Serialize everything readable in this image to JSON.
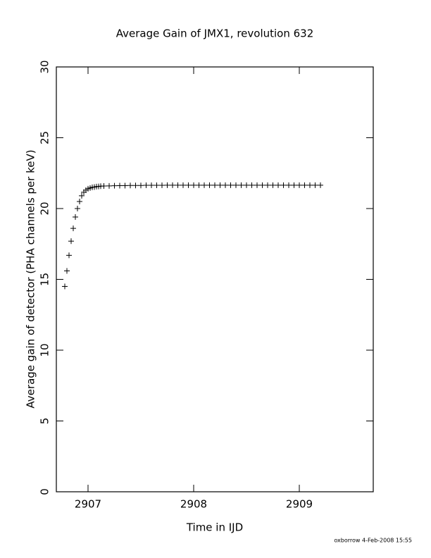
{
  "chart_data": {
    "type": "scatter",
    "title": "Average Gain of JMX1, revolution 632",
    "xlabel": "Time in IJD",
    "ylabel": "Average gain of detector (PHA channels per keV)",
    "footer": "oxborrow  4-Feb-2008 15:55",
    "marker": "+",
    "color": "#000000",
    "xlim": [
      2906.7,
      2909.7
    ],
    "xticks": [
      2907,
      2908,
      2909
    ],
    "ylim": [
      0,
      30
    ],
    "yticks": [
      0,
      5,
      10,
      15,
      20,
      25,
      30
    ],
    "x": [
      2906.78,
      2906.8,
      2906.82,
      2906.84,
      2906.86,
      2906.88,
      2906.9,
      2906.92,
      2906.94,
      2906.96,
      2906.98,
      2907.0,
      2907.02,
      2907.04,
      2907.06,
      2907.08,
      2907.1,
      2907.12,
      2907.15,
      2907.2,
      2907.25,
      2907.3,
      2907.35,
      2907.4,
      2907.45,
      2907.5,
      2907.55,
      2907.6,
      2907.65,
      2907.7,
      2907.75,
      2907.8,
      2907.85,
      2907.9,
      2907.95,
      2908.0,
      2908.05,
      2908.1,
      2908.15,
      2908.2,
      2908.25,
      2908.3,
      2908.35,
      2908.4,
      2908.45,
      2908.5,
      2908.55,
      2908.6,
      2908.65,
      2908.7,
      2908.75,
      2908.8,
      2908.85,
      2908.9,
      2908.95,
      2909.0,
      2909.05,
      2909.1,
      2909.15,
      2909.2
    ],
    "y": [
      14.5,
      15.6,
      16.7,
      17.7,
      18.6,
      19.4,
      20.0,
      20.5,
      20.9,
      21.15,
      21.3,
      21.4,
      21.45,
      21.5,
      21.52,
      21.55,
      21.56,
      21.58,
      21.59,
      21.6,
      21.61,
      21.62,
      21.62,
      21.63,
      21.63,
      21.63,
      21.64,
      21.64,
      21.64,
      21.64,
      21.65,
      21.65,
      21.65,
      21.65,
      21.65,
      21.65,
      21.65,
      21.65,
      21.65,
      21.65,
      21.65,
      21.65,
      21.65,
      21.65,
      21.65,
      21.65,
      21.65,
      21.65,
      21.65,
      21.65,
      21.65,
      21.65,
      21.65,
      21.65,
      21.65,
      21.65,
      21.65,
      21.65,
      21.65,
      21.65
    ]
  }
}
